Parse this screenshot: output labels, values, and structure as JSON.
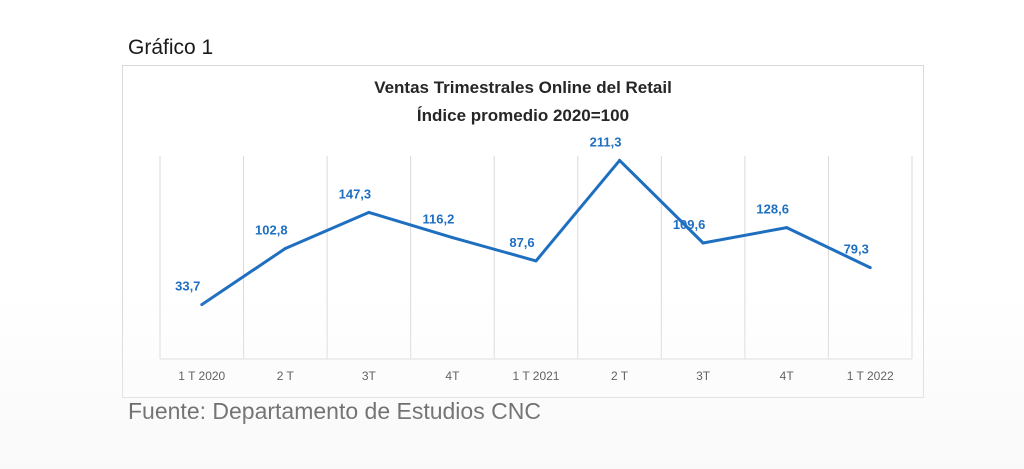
{
  "caption": "Gráfico 1",
  "source": "Fuente: Departamento de Estudios CNC",
  "colors": {
    "line": "#1f6fc0",
    "data_label": "#1f6fc0",
    "grid": "#d9d9d9",
    "axis_text": "#262626"
  },
  "chart_data": {
    "type": "line",
    "title": "Ventas Trimestrales Online del Retail",
    "subtitle": "Índice promedio 2020=100",
    "categories": [
      "1 T 2020",
      "2 T",
      "3T",
      "4T",
      "1 T 2021",
      "2 T",
      "3T",
      "4T",
      "1 T 2022"
    ],
    "series": [
      {
        "values": [
          33.7,
          102.8,
          147.3,
          116.2,
          87.6,
          211.3,
          109.6,
          128.6,
          79.3
        ],
        "labels": [
          "33,7",
          "102,8",
          "147,3",
          "116,2",
          "87,6",
          "211,3",
          "109,6",
          "128,6",
          "79,3"
        ]
      }
    ],
    "ylim": [
      0,
      250
    ],
    "grid": "vertical",
    "legend": "none",
    "data_labels": true
  }
}
